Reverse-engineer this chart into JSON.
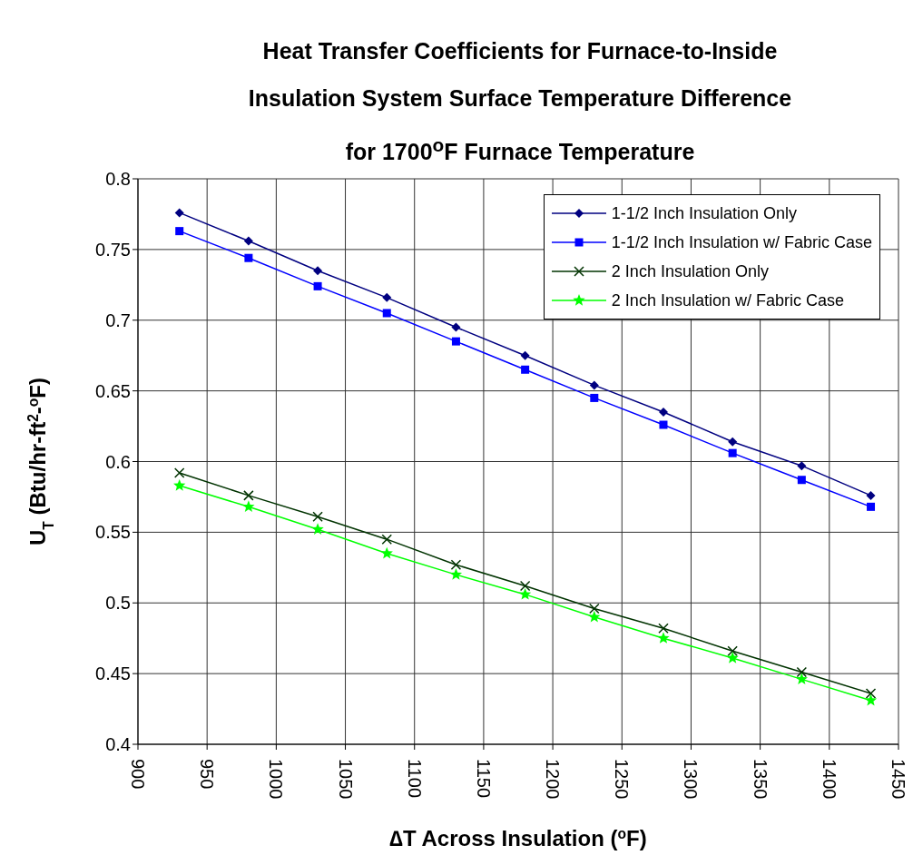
{
  "chart_data": {
    "type": "line",
    "title": "Heat Transfer Coefficients for Furnace-to-Inside Insulation System Surface Temperature Difference for 1700$^{o}$F Furnace Temperature",
    "xlabel": "∆T Across Insulation ($^{o}$F)",
    "ylabel": "U$_{T}$ (Btu/hr-ft$^{2}$-$^{o}$F)",
    "x": [
      930,
      980,
      1030,
      1080,
      1130,
      1180,
      1230,
      1280,
      1330,
      1380,
      1430
    ],
    "series": [
      {
        "name": "1-1/2 Inch Insulation Only",
        "color": "#000080",
        "marker": "diamond",
        "values": [
          0.776,
          0.756,
          0.735,
          0.716,
          0.695,
          0.675,
          0.654,
          0.635,
          0.614,
          0.597,
          0.576
        ]
      },
      {
        "name": "1-1/2 Inch Insulation w/ Fabric Case",
        "color": "#0000ff",
        "marker": "square",
        "values": [
          0.763,
          0.744,
          0.724,
          0.705,
          0.685,
          0.665,
          0.645,
          0.626,
          0.606,
          0.587,
          0.568
        ]
      },
      {
        "name": "2 Inch Insulation Only",
        "color": "#003300",
        "marker": "cross",
        "values": [
          0.592,
          0.576,
          0.561,
          0.545,
          0.527,
          0.512,
          0.496,
          0.482,
          0.466,
          0.451,
          0.436
        ]
      },
      {
        "name": "2 Inch Insulation w/ Fabric Case",
        "color": "#00ff00",
        "marker": "star",
        "values": [
          0.583,
          0.568,
          0.552,
          0.535,
          0.52,
          0.506,
          0.49,
          0.475,
          0.461,
          0.446,
          0.431
        ]
      }
    ],
    "xlim": [
      900,
      1450
    ],
    "xticks": [
      900,
      950,
      1000,
      1050,
      1100,
      1150,
      1200,
      1250,
      1300,
      1350,
      1400,
      1450
    ],
    "ylim": [
      0.4,
      0.8
    ],
    "yticks": [
      0.4,
      0.45,
      0.5,
      0.55,
      0.6,
      0.65,
      0.7,
      0.75,
      0.8
    ],
    "grid": true,
    "legend": "top right",
    "line_style": "solid"
  }
}
